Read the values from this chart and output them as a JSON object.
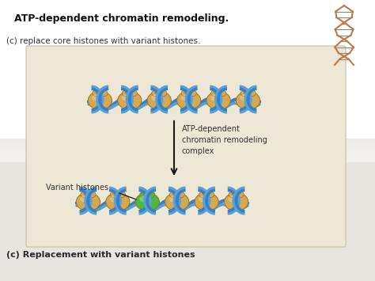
{
  "title": "ATP-dependent chromatin remodeling.",
  "subtitle": "(c) replace core histones with variant histones.",
  "caption": "(c) Replacement with variant histones",
  "label_atp": "ATP-dependent\nchromatin remodeling\ncomplex",
  "label_variant": "Variant histones",
  "bg_top": "#ffffff",
  "bg_color": "#f0eeec",
  "box_color": "#ede8d5",
  "box_border": "#c8c0a0",
  "title_color": "#111111",
  "text_color": "#333333",
  "caption_color": "#2a2a2a",
  "dna_blue": "#3a7fc0",
  "dna_blue2": "#5aa0d8",
  "histone_tan": "#d4a855",
  "histone_tan2": "#c49030",
  "histone_green": "#4db840",
  "histone_green2": "#2a8a20",
  "histone_outline": "#a07018",
  "arrow_color": "#1a1a1a",
  "dna_helix_color": "#c07848",
  "dna_helix_rung": "#888888",
  "figw": 4.74,
  "figh": 3.55,
  "dpi": 100
}
